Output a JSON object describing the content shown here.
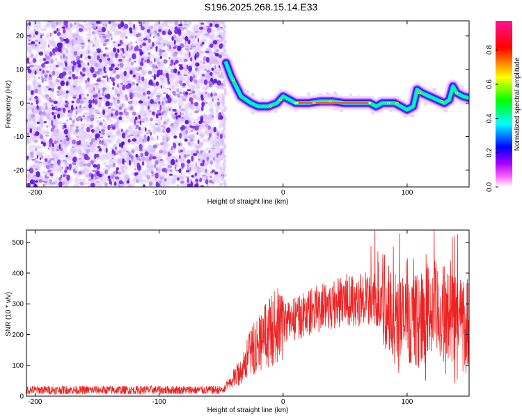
{
  "title": "S196.2025.268.15.14.E33",
  "chart_data": [
    {
      "type": "heatmap",
      "xlabel": "Height of straight line (km)",
      "ylabel": "Frequency (Hz)",
      "xlim": [
        -207,
        150
      ],
      "ylim": [
        -25,
        24.5
      ],
      "xticks": [
        -200,
        -100,
        0,
        100
      ],
      "yticks": [
        -20,
        -10,
        0,
        10,
        20
      ],
      "colorbar": {
        "label": "Normalized spectral amplitude",
        "range": [
          0,
          0.97
        ],
        "ticks": [
          "0.0",
          "0.2",
          "0.4",
          "0.6",
          "0.8"
        ],
        "colors": [
          "#ffffff",
          "#ff00ff",
          "#0000ff",
          "#00ffff",
          "#00ff00",
          "#ffff00",
          "#ff0000",
          "#ff1493"
        ]
      },
      "noise_region_km": [
        -207,
        -48
      ],
      "ridge": [
        {
          "x": -46,
          "y": 12
        },
        {
          "x": -42,
          "y": 8
        },
        {
          "x": -38,
          "y": 5
        },
        {
          "x": -34,
          "y": 2
        },
        {
          "x": -30,
          "y": 1
        },
        {
          "x": -26,
          "y": 0
        },
        {
          "x": -20,
          "y": -1
        },
        {
          "x": -12,
          "y": -1
        },
        {
          "x": -5,
          "y": 0
        },
        {
          "x": 0,
          "y": 2
        },
        {
          "x": 5,
          "y": 1
        },
        {
          "x": 10,
          "y": 0
        },
        {
          "x": 20,
          "y": 0
        },
        {
          "x": 30,
          "y": 0.5
        },
        {
          "x": 40,
          "y": 0.5
        },
        {
          "x": 50,
          "y": 0
        },
        {
          "x": 60,
          "y": 0
        },
        {
          "x": 70,
          "y": 0
        },
        {
          "x": 75,
          "y": -1
        },
        {
          "x": 80,
          "y": 0
        },
        {
          "x": 90,
          "y": 0
        },
        {
          "x": 95,
          "y": -1
        },
        {
          "x": 100,
          "y": -2
        },
        {
          "x": 105,
          "y": -1
        },
        {
          "x": 108,
          "y": 4
        },
        {
          "x": 112,
          "y": 3
        },
        {
          "x": 118,
          "y": 2
        },
        {
          "x": 124,
          "y": 1
        },
        {
          "x": 130,
          "y": 0
        },
        {
          "x": 134,
          "y": 1
        },
        {
          "x": 137,
          "y": 5
        },
        {
          "x": 140,
          "y": 3
        },
        {
          "x": 145,
          "y": 2
        },
        {
          "x": 150,
          "y": 1.5
        }
      ]
    },
    {
      "type": "line",
      "xlabel": "Height of straight line (km)",
      "ylabel": "SNR (10 * v/v)",
      "xlim": [
        -207,
        150
      ],
      "ylim": [
        0,
        540
      ],
      "xticks": [
        -200,
        -100,
        0,
        100
      ],
      "yticks": [
        0,
        100,
        200,
        300,
        400,
        500
      ],
      "color": "#ee2222",
      "envelope": [
        {
          "x": -207,
          "y": 18
        },
        {
          "x": -60,
          "y": 18
        },
        {
          "x": -48,
          "y": 20
        },
        {
          "x": -35,
          "y": 80
        },
        {
          "x": -25,
          "y": 150
        },
        {
          "x": -15,
          "y": 200
        },
        {
          "x": 0,
          "y": 240
        },
        {
          "x": 15,
          "y": 260
        },
        {
          "x": 30,
          "y": 290
        },
        {
          "x": 50,
          "y": 310
        },
        {
          "x": 70,
          "y": 320
        },
        {
          "x": 80,
          "y": 300
        },
        {
          "x": 90,
          "y": 260
        },
        {
          "x": 100,
          "y": 240
        },
        {
          "x": 110,
          "y": 250
        },
        {
          "x": 120,
          "y": 280
        },
        {
          "x": 135,
          "y": 260
        },
        {
          "x": 150,
          "y": 250
        }
      ]
    }
  ]
}
